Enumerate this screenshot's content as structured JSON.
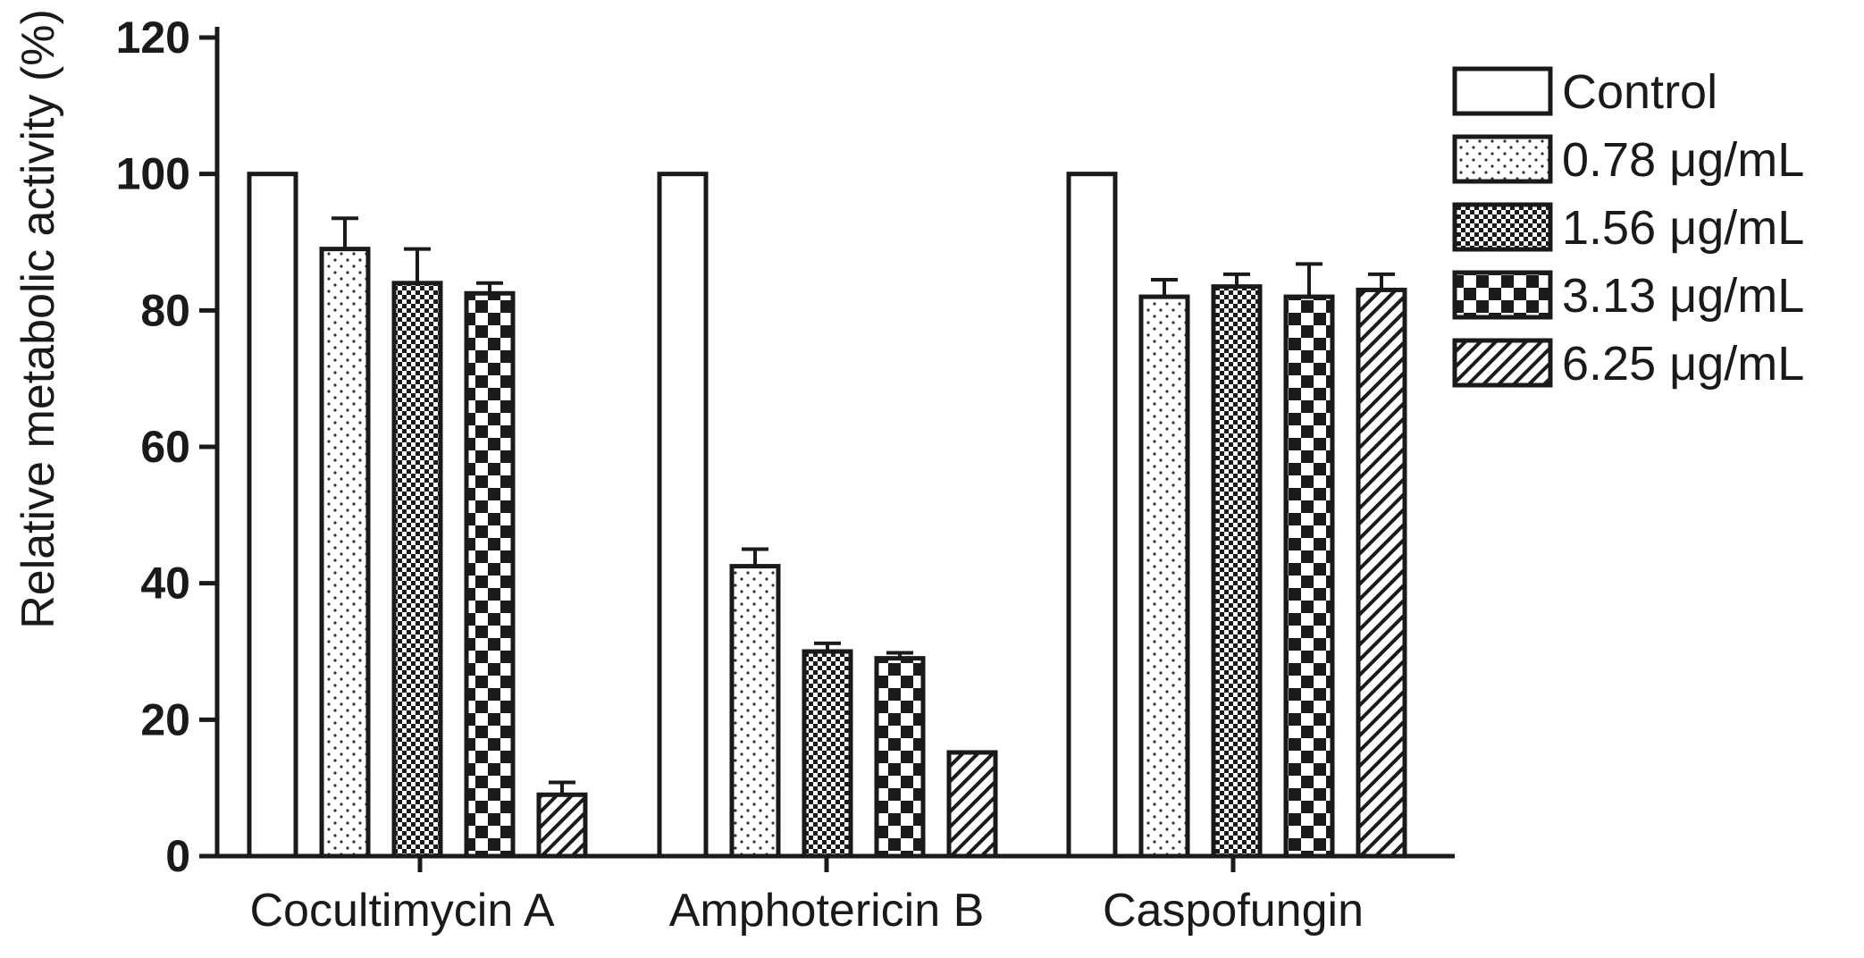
{
  "chart_data": {
    "type": "bar",
    "title": "",
    "xlabel": "",
    "ylabel": "Relative metabolic activity (%)",
    "ylim": [
      0,
      120
    ],
    "yticks": [
      "0",
      "20",
      "40",
      "60",
      "80",
      "100",
      "120"
    ],
    "categories": [
      "Cocultimycin A",
      "Amphotericin B",
      "Caspofungin"
    ],
    "legend_position": "right",
    "series": [
      {
        "name": "Control",
        "pattern": "blank",
        "values": [
          100,
          100,
          100
        ],
        "errors": [
          0,
          0,
          0
        ]
      },
      {
        "name": "0.78 μg/mL",
        "pattern": "dots",
        "values": [
          89,
          42.5,
          82
        ],
        "errors": [
          4.5,
          2.5,
          2.5
        ]
      },
      {
        "name": "1.56 μg/mL",
        "pattern": "fine-check",
        "values": [
          84,
          30,
          83.5
        ],
        "errors": [
          5,
          1.2,
          1.8
        ]
      },
      {
        "name": "3.13 μg/mL",
        "pattern": "checker",
        "values": [
          82.5,
          29,
          82
        ],
        "errors": [
          1.5,
          0.8,
          4.8
        ]
      },
      {
        "name": "6.25 μg/mL",
        "pattern": "hatch",
        "values": [
          9,
          15.2,
          83
        ],
        "errors": [
          1.8,
          0,
          2.3
        ]
      }
    ]
  }
}
